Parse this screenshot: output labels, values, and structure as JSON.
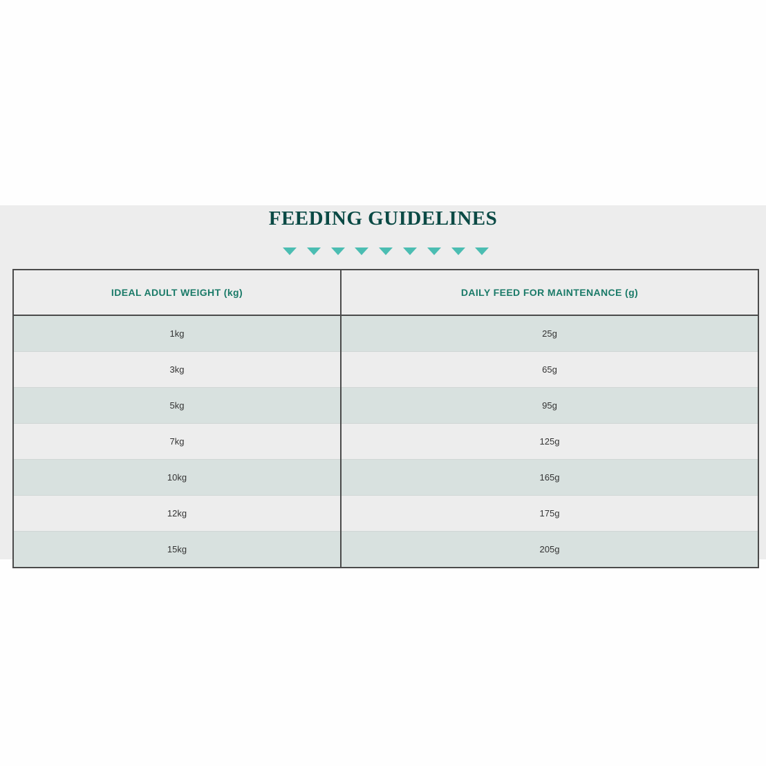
{
  "title": "FEEDING GUIDELINES",
  "accent_color": "#4bbdb2",
  "title_color": "#0b4a45",
  "divider_icon_count": 9,
  "table": {
    "headers": [
      "IDEAL ADULT WEIGHT (kg)",
      "DAILY FEED FOR MAINTENANCE (g)"
    ],
    "rows": [
      [
        "1kg",
        "25g"
      ],
      [
        "3kg",
        "65g"
      ],
      [
        "5kg",
        "95g"
      ],
      [
        "7kg",
        "125g"
      ],
      [
        "10kg",
        "165g"
      ],
      [
        "12kg",
        "175g"
      ],
      [
        "15kg",
        "205g"
      ]
    ]
  }
}
